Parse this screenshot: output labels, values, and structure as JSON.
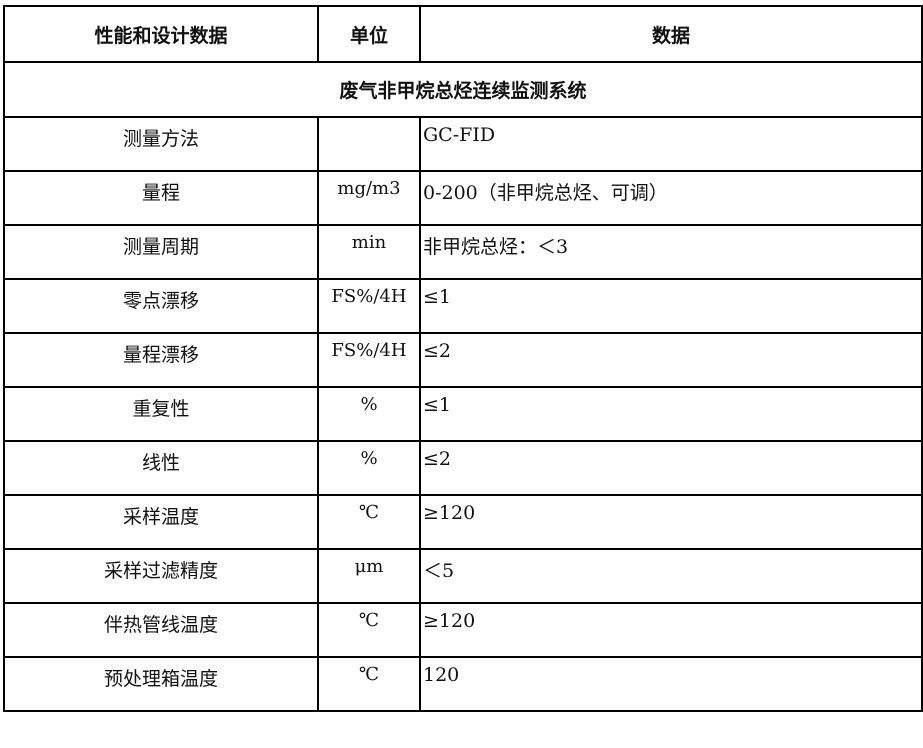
{
  "header": {
    "col1": "性能和设计数据",
    "col2": "单位",
    "col3": "数据"
  },
  "section_title": "废气非甲烷总烃连续监测系统",
  "rows": [
    {
      "name": "测量方法",
      "unit": "",
      "value": "GC-FID"
    },
    {
      "name": "量程",
      "unit": "mg/m3",
      "value": "0-200（非甲烷总烃、可调）"
    },
    {
      "name": "测量周期",
      "unit": "min",
      "value": "非甲烷总烃：＜3"
    },
    {
      "name": "零点漂移",
      "unit": "FS%/4H",
      "value": "≤1"
    },
    {
      "name": "量程漂移",
      "unit": "FS%/4H",
      "value": "≤2"
    },
    {
      "name": "重复性",
      "unit": "%",
      "value": "≤1"
    },
    {
      "name": "线性",
      "unit": "%",
      "value": "≤2"
    },
    {
      "name": "采样温度",
      "unit": "℃",
      "value": "≥120"
    },
    {
      "name": "采样过滤精度",
      "unit": "μm",
      "value": "＜5"
    },
    {
      "name": "伴热管线温度",
      "unit": "℃",
      "value": "≥120"
    },
    {
      "name": "预处理箱温度",
      "unit": "℃",
      "value": "120"
    }
  ]
}
